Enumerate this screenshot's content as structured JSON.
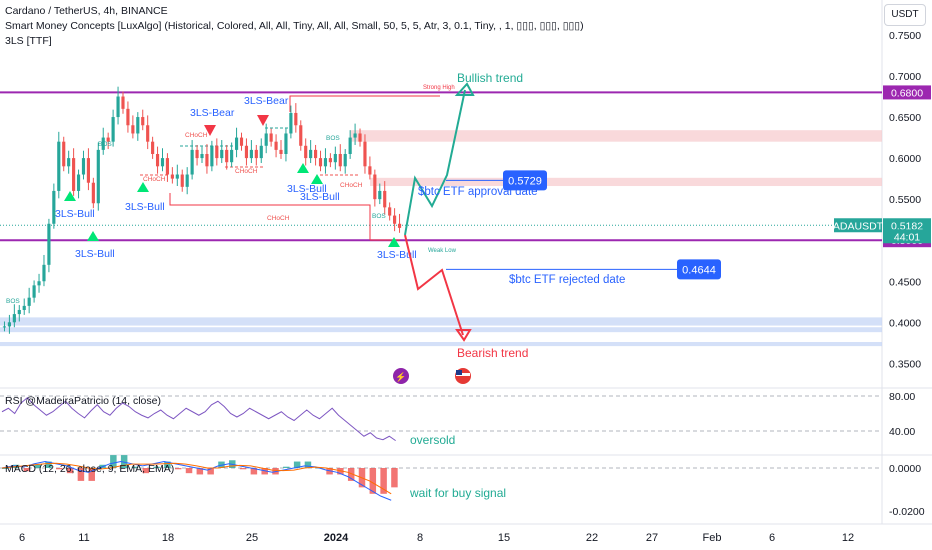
{
  "header": {
    "symbol_line": "Cardano / TetherUS, 4h, BINANCE",
    "indicator_1": "Smart Money Concepts [LuxAlgo] (Historical, Colored, All, All, Tiny, All, All, Small, 50, 5, 5, Atr, 3, 0.1, Tiny, , 1, ▯▯▯, ▯▯▯, ▯▯▯)",
    "indicator_2": "3LS [TTF]",
    "currency": "USDT"
  },
  "colors": {
    "up": "#26a69a",
    "down": "#ef5350",
    "magenta": "#9c27b0",
    "red_line": "#f23645",
    "bull_trend": "#22ab94",
    "bear_trend": "#f23645",
    "blue": "#2962ff",
    "label_green": "#00e676",
    "label_red": "#f23645",
    "rsi": "#7e57c2",
    "macd": "#2962ff",
    "signal": "#ff6d00",
    "zone_red": "#f7c9cc",
    "zone_blue": "#c5d6f5"
  },
  "price_axis": {
    "ticks": [
      "0.7500",
      "0.7000",
      "0.6500",
      "0.6000",
      "0.5500",
      "0.4500",
      "0.4000",
      "0.3500"
    ],
    "tick_values": [
      0.75,
      0.7,
      0.65,
      0.6,
      0.55,
      0.45,
      0.4,
      0.35
    ],
    "labels": [
      {
        "text": "0.6800",
        "value": 0.68,
        "color": "#9c27b0"
      },
      {
        "text": "0.5000",
        "value": 0.5,
        "color": "#9c27b0"
      },
      {
        "text": "ADAUSDT",
        "value": 0.5182,
        "color": "#26a69a"
      },
      {
        "text": "0.5182",
        "value": 0.5182,
        "color": "#26a69a"
      },
      {
        "text": "44:01",
        "value": 0.5182,
        "color": "#26a69a"
      }
    ]
  },
  "time_axis": {
    "labels": [
      "6",
      "11",
      "18",
      "25",
      "2024",
      "8",
      "15",
      "22",
      "27",
      "Feb",
      "6",
      "12"
    ]
  },
  "chart_data": {
    "type": "candlestick",
    "title": "Cardano / TetherUS, 4h, BINANCE",
    "ylim": [
      0.33,
      0.76
    ],
    "x_dates": [
      "6",
      "11",
      "18",
      "25",
      "2024",
      "8",
      "15",
      "22",
      "27",
      "Feb",
      "6",
      "12"
    ],
    "last_price": 0.5182,
    "levels": [
      {
        "name": "resistance",
        "value": 0.68
      },
      {
        "name": "support",
        "value": 0.5
      }
    ],
    "price_path": [
      [
        0.395,
        0.4,
        0.41,
        0.415,
        0.42,
        0.43,
        0.445,
        0.45,
        0.47,
        0.52,
        0.56,
        0.62,
        0.59,
        0.6,
        0.56,
        0.58,
        0.6,
        0.57,
        0.545,
        0.61,
        0.625,
        0.62,
        0.65,
        0.675,
        0.66,
        0.64,
        0.63,
        0.65,
        0.64,
        0.62,
        0.605,
        0.59,
        0.6,
        0.58,
        0.575,
        0.58,
        0.565,
        0.58,
        0.61,
        0.6,
        0.605,
        0.59,
        0.615,
        0.6,
        0.61,
        0.595,
        0.61,
        0.625,
        0.615,
        0.6,
        0.61,
        0.6,
        0.615,
        0.63,
        0.62,
        0.61,
        0.605,
        0.63,
        0.655,
        0.64,
        0.615,
        0.6,
        0.61,
        0.6,
        0.59,
        0.6,
        0.595,
        0.605,
        0.59,
        0.605,
        0.625,
        0.63,
        0.62,
        0.59,
        0.58,
        0.55,
        0.56,
        0.54,
        0.53,
        0.52,
        0.515
      ]
    ],
    "annotations": [
      {
        "text": "Bullish trend",
        "color": "#22ab94"
      },
      {
        "text": "Bearish trend",
        "color": "#f23645"
      },
      {
        "text": "$btc ETF approval date",
        "price": 0.5729
      },
      {
        "text": "$btc ETF rejected date",
        "price": 0.4644
      },
      {
        "text": "Strong High"
      },
      {
        "text": "Weak Low"
      },
      {
        "text": "CHoCH"
      },
      {
        "text": "BOS"
      }
    ],
    "price_boxes": [
      {
        "text": "0.5729",
        "value": 0.5729
      },
      {
        "text": "0.4644",
        "value": 0.4644
      }
    ],
    "pattern_labels": [
      {
        "text": "3LS-Bear"
      },
      {
        "text": "3LS-Bear"
      },
      {
        "text": "3LS-Bull"
      },
      {
        "text": "3LS-Bull"
      },
      {
        "text": "3LS-Bull"
      },
      {
        "text": "3LS-Bull"
      },
      {
        "text": "3LS-Bull"
      },
      {
        "text": "3LS-Bull"
      }
    ],
    "rsi": {
      "title": "RSI @MadeiraPatricio (14, close)",
      "ticks": [
        "80.00",
        "40.00"
      ],
      "tick_values": [
        80,
        40
      ],
      "ylim": [
        0,
        90
      ],
      "values": [
        62,
        66,
        60,
        72,
        78,
        70,
        64,
        58,
        62,
        68,
        74,
        66,
        60,
        55,
        63,
        70,
        62,
        58,
        66,
        72,
        68,
        62,
        58,
        55,
        60,
        64,
        58,
        54,
        60,
        66,
        62,
        58,
        62,
        70,
        74,
        68,
        60,
        56,
        60,
        66,
        62,
        58,
        54,
        58,
        62,
        56,
        52,
        58,
        64,
        58,
        54,
        60,
        66,
        58,
        52,
        46,
        40,
        34,
        38,
        32,
        30,
        34,
        29
      ],
      "note": "oversold"
    },
    "macd": {
      "title": "MACD (12, 26, close, 9, EMA, EMA)",
      "ticks": [
        "0.0000",
        "-0.0200"
      ],
      "tick_values": [
        0.0,
        -0.02
      ],
      "ylim": [
        -0.025,
        0.01
      ],
      "macd_line": [
        0.0,
        0.001,
        0.0005,
        0.002,
        0.003,
        0.002,
        0.001,
        -0.001,
        -0.002,
        0.0,
        0.002,
        0.003,
        0.002,
        0.001,
        0.002,
        0.003,
        0.002,
        0.001,
        0.0,
        -0.001,
        0.001,
        0.002,
        0.001,
        0.0,
        -0.001,
        -0.002,
        -0.001,
        0.0,
        0.001,
        0.0005,
        -0.001,
        -0.002,
        -0.004,
        -0.007,
        -0.01,
        -0.013,
        -0.015
      ],
      "signal_line": [
        0.0,
        0.0005,
        0.001,
        0.0015,
        0.002,
        0.0022,
        0.0018,
        0.001,
        0.0,
        -0.0005,
        0.0,
        0.001,
        0.0018,
        0.0018,
        0.0018,
        0.002,
        0.0022,
        0.0018,
        0.001,
        0.0,
        0.0,
        0.0008,
        0.0012,
        0.001,
        0.0,
        -0.001,
        -0.0012,
        -0.001,
        0.0,
        0.0004,
        0.0,
        -0.001,
        -0.002,
        -0.004,
        -0.006,
        -0.009,
        -0.012
      ],
      "note": "wait for buy signal"
    }
  }
}
